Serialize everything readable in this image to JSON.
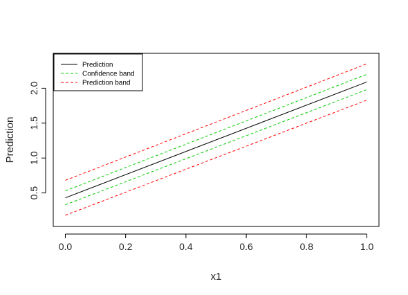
{
  "chart_data": {
    "type": "line",
    "xlabel": "x1",
    "ylabel": "Prediction",
    "xlim": [
      -0.04,
      1.04
    ],
    "ylim": [
      0.02,
      2.5
    ],
    "xticks": [
      0.0,
      0.2,
      0.4,
      0.6,
      0.8,
      1.0
    ],
    "xtick_labels": [
      "0.0",
      "0.2",
      "0.4",
      "0.6",
      "0.8",
      "1.0"
    ],
    "yticks": [
      0.5,
      1.0,
      1.5,
      2.0
    ],
    "ytick_labels": [
      "0.5",
      "1.0",
      "1.5",
      "2.0"
    ],
    "grid": false,
    "legend_position": "top-left",
    "legend": [
      {
        "label": "Prediction",
        "color": "#000000",
        "dash": "solid"
      },
      {
        "label": "Confidence band",
        "color": "#00cc00",
        "dash": "dashed"
      },
      {
        "label": "Prediction band",
        "color": "#ff0000",
        "dash": "dashed"
      }
    ],
    "x": [
      0.0,
      1.0
    ],
    "series": [
      {
        "name": "Prediction",
        "color": "#000000",
        "dash": "solid",
        "values": [
          0.43,
          2.09
        ]
      },
      {
        "name": "Confidence band",
        "color": "#00cc00",
        "dash": "dashed",
        "values": [
          0.53,
          2.2
        ]
      },
      {
        "name": "Confidence band",
        "color": "#00cc00",
        "dash": "dashed",
        "values": [
          0.33,
          1.98
        ]
      },
      {
        "name": "Prediction band",
        "color": "#ff0000",
        "dash": "dashed",
        "values": [
          0.68,
          2.35
        ]
      },
      {
        "name": "Prediction band",
        "color": "#ff0000",
        "dash": "dashed",
        "values": [
          0.18,
          1.83
        ]
      }
    ]
  }
}
